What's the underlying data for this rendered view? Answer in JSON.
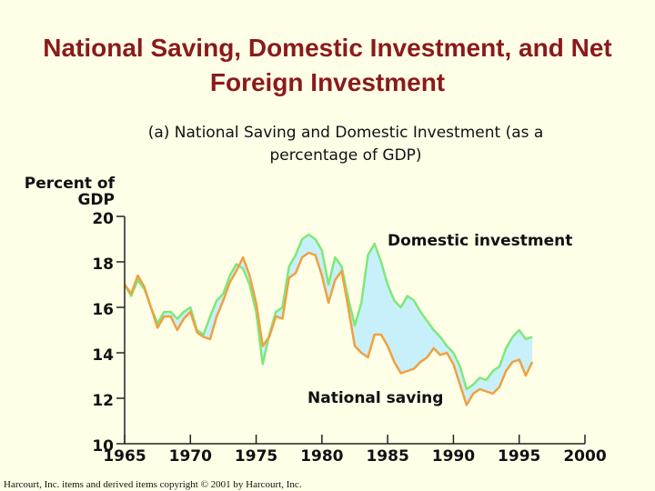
{
  "chart_data": {
    "type": "line",
    "title": "National Saving, Domestic Investment, and Net Foreign Investment",
    "subtitle": "(a) National Saving and Domestic Investment (as a percentage of GDP)",
    "ylabel": "Percent of GDP",
    "footer": "Harcourt, Inc. items and derived items copyright © 2001 by Harcourt, Inc.",
    "x": [
      1965.0,
      1965.5,
      1966.0,
      1966.5,
      1967.0,
      1967.5,
      1968.0,
      1968.5,
      1969.0,
      1969.5,
      1970.0,
      1970.5,
      1971.0,
      1971.5,
      1972.0,
      1972.5,
      1973.0,
      1973.5,
      1974.0,
      1974.5,
      1975.0,
      1975.5,
      1976.0,
      1976.5,
      1977.0,
      1977.5,
      1978.0,
      1978.5,
      1979.0,
      1979.5,
      1980.0,
      1980.5,
      1981.0,
      1981.5,
      1982.0,
      1982.5,
      1983.0,
      1983.5,
      1984.0,
      1984.5,
      1985.0,
      1985.5,
      1986.0,
      1986.5,
      1987.0,
      1987.5,
      1988.0,
      1988.5,
      1989.0,
      1989.5,
      1990.0,
      1990.5,
      1991.0,
      1991.5,
      1992.0,
      1992.5,
      1993.0,
      1993.5,
      1994.0,
      1994.5,
      1995.0,
      1995.5,
      1996.0
    ],
    "series": [
      {
        "name": "Domestic investment",
        "color": "#7ee87a",
        "values": [
          17.0,
          16.5,
          17.2,
          16.8,
          16.0,
          15.3,
          15.8,
          15.8,
          15.5,
          15.8,
          16.0,
          15.0,
          14.8,
          15.6,
          16.3,
          16.6,
          17.4,
          17.9,
          17.7,
          17.0,
          15.8,
          13.5,
          14.8,
          15.8,
          16.0,
          17.8,
          18.3,
          19.0,
          19.2,
          19.0,
          18.5,
          17.0,
          18.2,
          17.8,
          16.4,
          15.2,
          16.2,
          18.3,
          18.8,
          18.0,
          17.0,
          16.3,
          16.0,
          16.5,
          16.3,
          15.8,
          15.4,
          15.0,
          14.7,
          14.3,
          14.0,
          13.4,
          12.4,
          12.6,
          12.9,
          12.8,
          13.2,
          13.4,
          14.2,
          14.7,
          15.0,
          14.6,
          14.7
        ]
      },
      {
        "name": "National saving",
        "color": "#f0a040",
        "values": [
          17.0,
          16.6,
          17.4,
          16.9,
          16.0,
          15.1,
          15.6,
          15.6,
          15.0,
          15.5,
          15.8,
          14.9,
          14.7,
          14.6,
          15.6,
          16.3,
          17.1,
          17.6,
          18.2,
          17.4,
          16.2,
          14.3,
          14.7,
          15.6,
          15.5,
          17.3,
          17.5,
          18.2,
          18.4,
          18.3,
          17.4,
          16.2,
          17.2,
          17.6,
          16.0,
          14.3,
          14.0,
          13.8,
          14.8,
          14.8,
          14.3,
          13.6,
          13.1,
          13.2,
          13.3,
          13.6,
          13.8,
          14.2,
          13.9,
          14.0,
          13.5,
          12.6,
          11.7,
          12.2,
          12.4,
          12.3,
          12.2,
          12.5,
          13.2,
          13.6,
          13.7,
          13.0,
          13.6
        ]
      }
    ],
    "area_color": "#c8f0fa",
    "xlim": [
      1965,
      2000
    ],
    "xticks": [
      1965,
      1970,
      1975,
      1980,
      1985,
      1990,
      1995,
      2000
    ],
    "ylim": [
      10,
      20
    ],
    "yticks": [
      10,
      12,
      14,
      16,
      18,
      20
    ]
  }
}
